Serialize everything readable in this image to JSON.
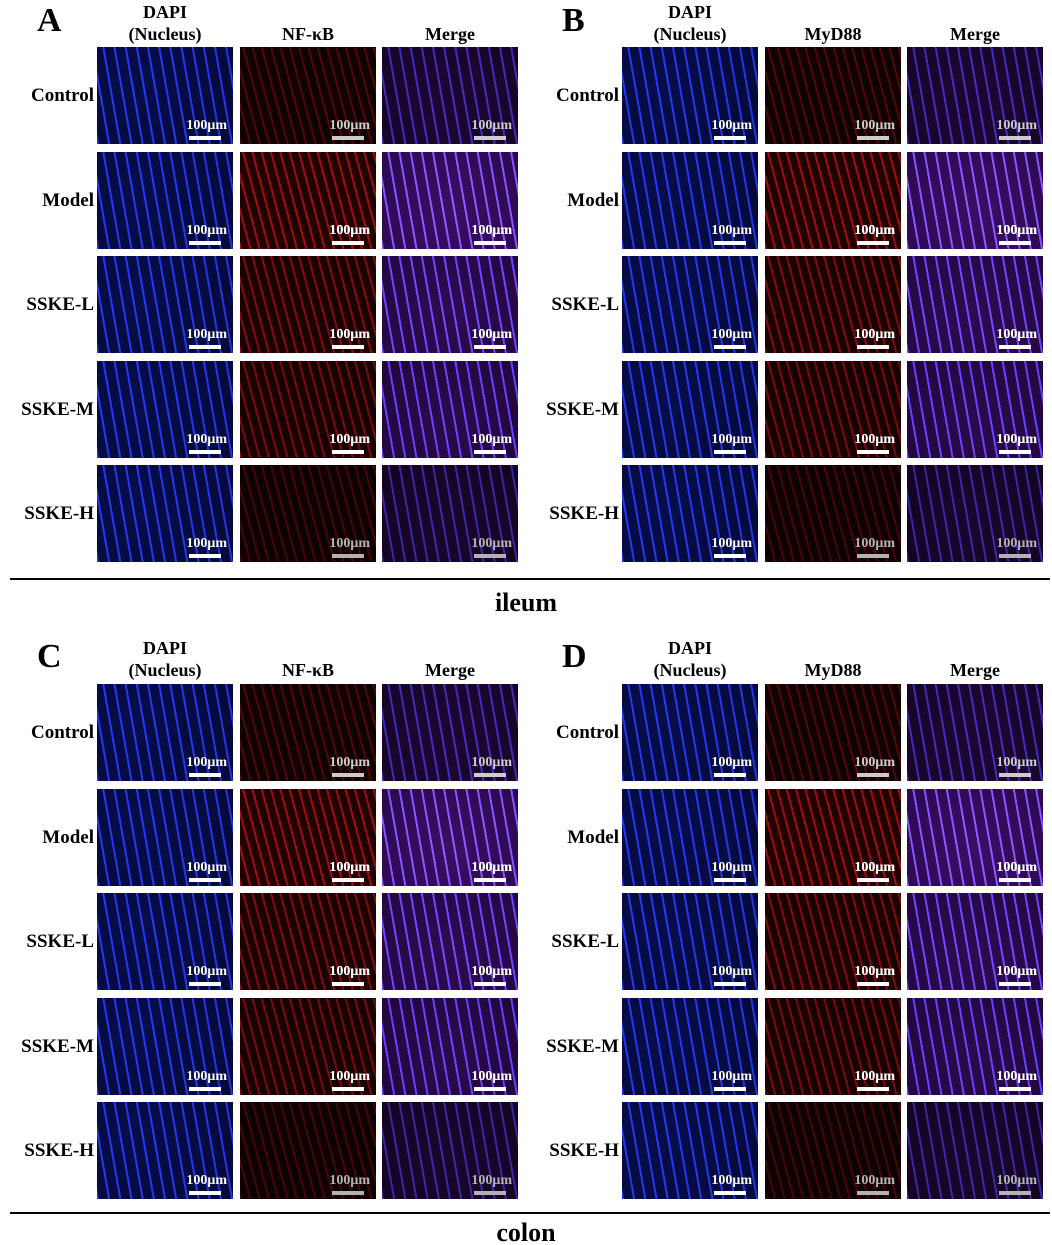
{
  "sections": [
    {
      "label": "ileum",
      "panels": [
        {
          "letter": "A",
          "columns": [
            [
              "DAPI",
              "(Nucleus)"
            ],
            [
              "NF-κB"
            ],
            [
              "Merge"
            ]
          ],
          "rows": [
            "Control",
            "Model",
            "SSKE-L",
            "SSKE-M",
            "SSKE-H"
          ],
          "scale_bar": "100μm"
        },
        {
          "letter": "B",
          "columns": [
            [
              "DAPI",
              "(Nucleus)"
            ],
            [
              "MyD88"
            ],
            [
              "Merge"
            ]
          ],
          "rows": [
            "Control",
            "Model",
            "SSKE-L",
            "SSKE-M",
            "SSKE-H"
          ],
          "scale_bar": "100μm"
        }
      ]
    },
    {
      "label": "colon",
      "panels": [
        {
          "letter": "C",
          "columns": [
            [
              "DAPI",
              "(Nucleus)"
            ],
            [
              "NF-κB"
            ],
            [
              "Merge"
            ]
          ],
          "rows": [
            "Control",
            "Model",
            "SSKE-L",
            "SSKE-M",
            "SSKE-H"
          ],
          "scale_bar": "100μm"
        },
        {
          "letter": "D",
          "columns": [
            [
              "DAPI",
              "(Nucleus)"
            ],
            [
              "MyD88"
            ],
            [
              "Merge"
            ]
          ],
          "rows": [
            "Control",
            "Model",
            "SSKE-L",
            "SSKE-M",
            "SSKE-H"
          ],
          "scale_bar": "100μm"
        }
      ]
    }
  ]
}
